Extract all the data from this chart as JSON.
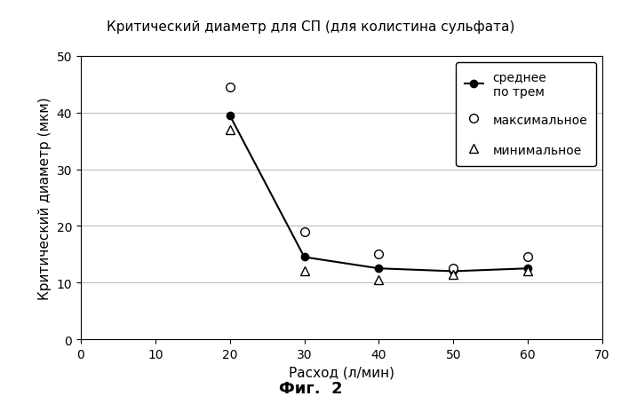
{
  "title": "Критический диаметр для СП (для колистина сульфата)",
  "xlabel": "Расход (л/мин)",
  "ylabel": "Критический диаметр (мкм)",
  "caption": "Фиг.  2",
  "x": [
    20,
    30,
    40,
    50,
    60
  ],
  "mean_y": [
    39.5,
    14.5,
    12.5,
    12.0,
    12.5
  ],
  "max_y": [
    44.5,
    19.0,
    15.0,
    12.5,
    14.5
  ],
  "min_y": [
    37.0,
    12.0,
    10.5,
    11.5,
    12.0
  ],
  "xlim": [
    0,
    70
  ],
  "ylim": [
    0,
    50
  ],
  "xticks": [
    0,
    10,
    20,
    30,
    40,
    50,
    60,
    70
  ],
  "yticks": [
    0,
    10,
    20,
    30,
    40,
    50
  ],
  "legend_mean": "среднее\nпо трем",
  "legend_max": "максимальное",
  "legend_min": "минимальное",
  "bg_color": "#ffffff",
  "line_color": "#000000",
  "grid_color": "#bbbbbb"
}
